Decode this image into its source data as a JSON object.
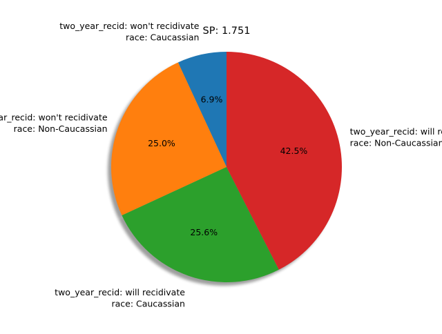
{
  "chart_data": {
    "type": "pie",
    "title": "SP: 1.751",
    "start_angle_deg": 90,
    "direction": "counterclockwise",
    "shadow": true,
    "slices": [
      {
        "label_lines": [
          "two_year_recid: won't recidivate",
          "race: Caucassian"
        ],
        "value": 6.9,
        "pct_label": "6.9%",
        "color": "#1f77b4"
      },
      {
        "label_lines": [
          "two_year_recid: won't recidivate",
          "race: Non-Caucassian"
        ],
        "value": 25.0,
        "pct_label": "25.0%",
        "color": "#ff7f0e"
      },
      {
        "label_lines": [
          "two_year_recid: will recidivate",
          "race: Caucassian"
        ],
        "value": 25.6,
        "pct_label": "25.6%",
        "color": "#2ca02c"
      },
      {
        "label_lines": [
          "two_year_recid: will recidivate",
          "race: Non-Caucassian"
        ],
        "value": 42.5,
        "pct_label": "42.5%",
        "color": "#d62728"
      }
    ]
  }
}
